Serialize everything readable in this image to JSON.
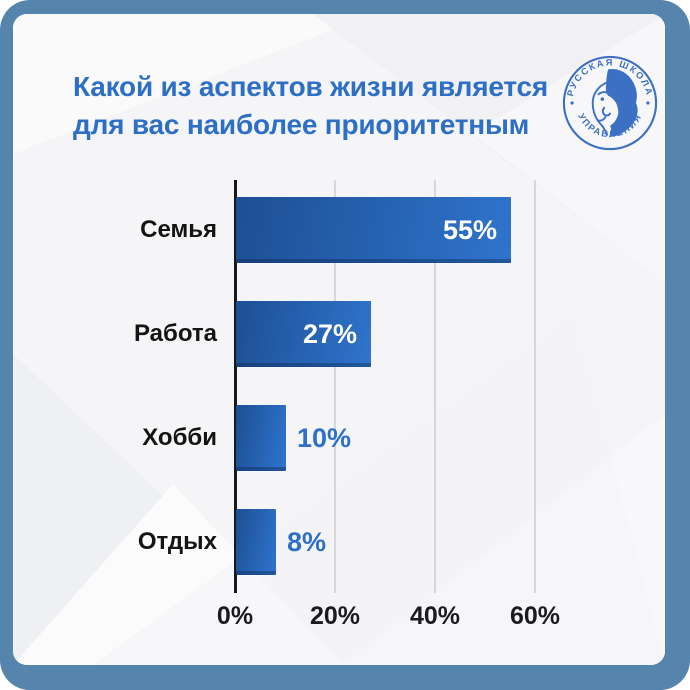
{
  "frame": {
    "color": "#5584ad"
  },
  "header": {
    "title_line1": "Какой из аспектов жизни является",
    "title_line2": "для вас наиболее приоритетным",
    "title_color": "#2e6fc6"
  },
  "logo": {
    "top_text": "РУССКАЯ ШКОЛА",
    "bottom_text": "УПРАВЛЕНИЯ",
    "color": "#3c70c4"
  },
  "chart_data": {
    "type": "bar",
    "orientation": "horizontal",
    "title": "Какой из аспектов жизни является для вас наиболее приоритетным",
    "categories": [
      "Семья",
      "Работа",
      "Хобби",
      "Отдых"
    ],
    "values": [
      55,
      27,
      10,
      8
    ],
    "value_suffix": "%",
    "x_ticks": [
      "0%",
      "20%",
      "40%",
      "60%"
    ],
    "x_tick_values": [
      0,
      20,
      40,
      60
    ],
    "xmax": 60,
    "xlabel": "",
    "ylabel": "",
    "grid": "vertical-gridlines",
    "legend": "none",
    "bar_gradient": [
      "#1d4f93",
      "#2f74cd"
    ],
    "inside_label_color": "#ffffff",
    "outside_label_color": "#2e70c9",
    "inside_label_threshold": 20,
    "axis_color": "#17181a",
    "gridline_color": "#d7d7da"
  }
}
